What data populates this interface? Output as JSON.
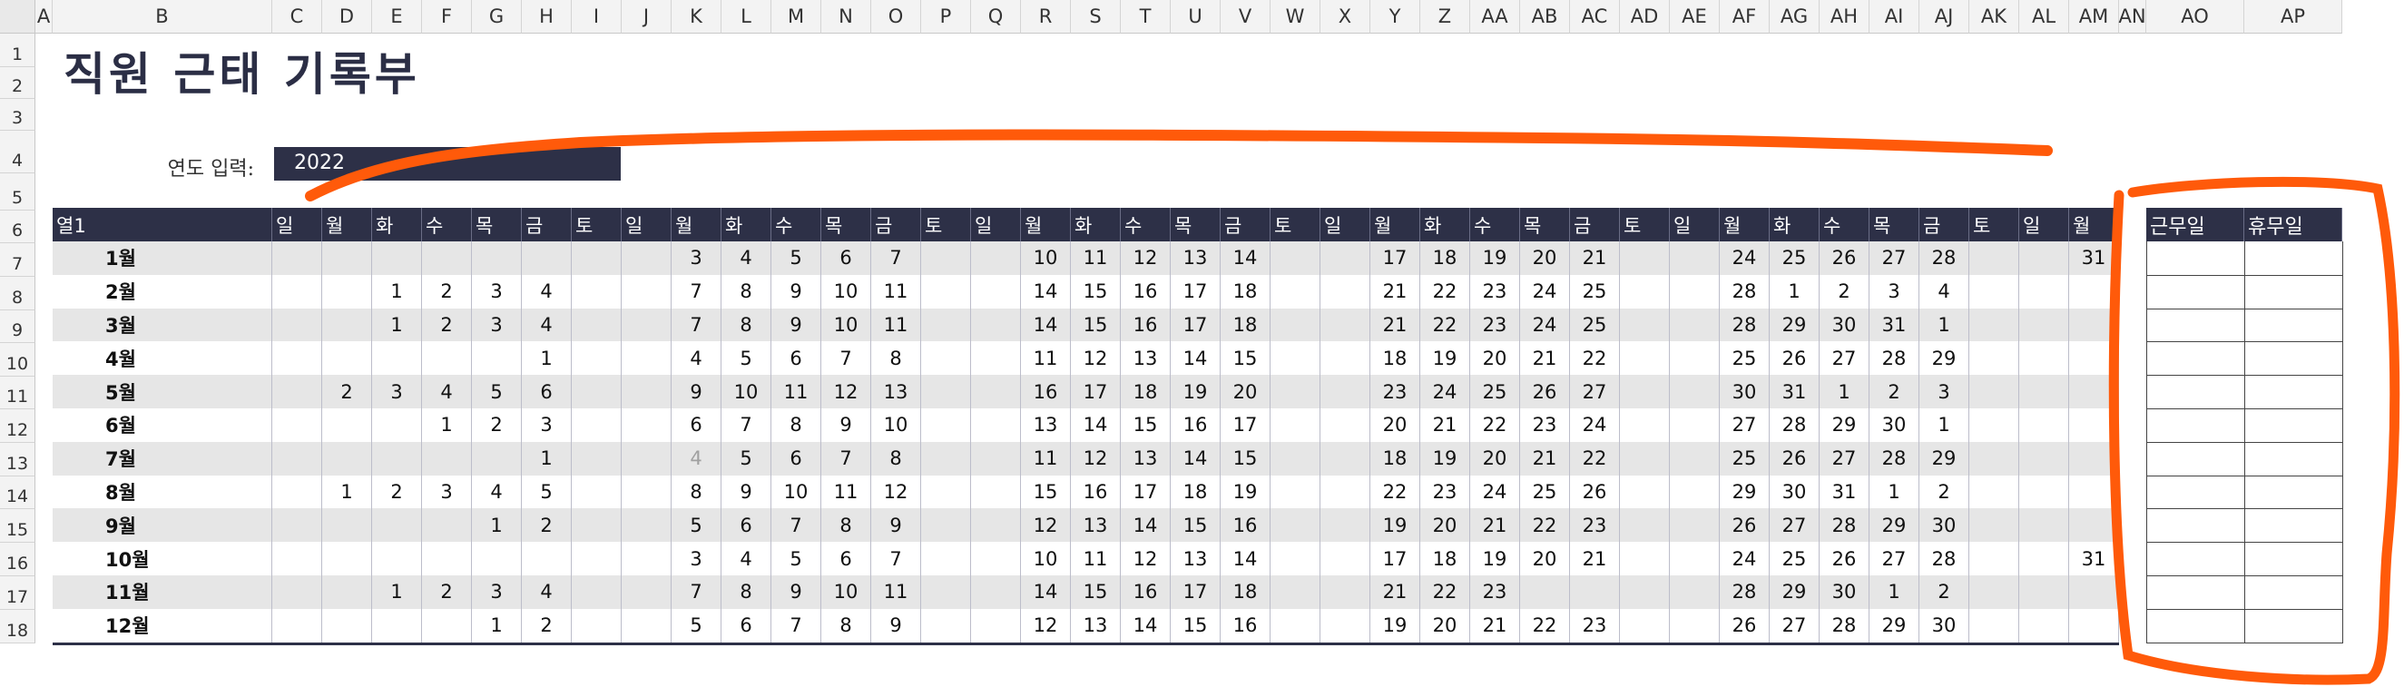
{
  "sheet": {
    "columns": [
      "A",
      "B",
      "C",
      "D",
      "E",
      "F",
      "G",
      "H",
      "I",
      "J",
      "K",
      "L",
      "M",
      "N",
      "O",
      "P",
      "Q",
      "R",
      "S",
      "T",
      "U",
      "V",
      "W",
      "X",
      "Y",
      "Z",
      "AA",
      "AB",
      "AC",
      "AD",
      "AE",
      "AF",
      "AG",
      "AH",
      "AI",
      "AJ",
      "AK",
      "AL",
      "AM",
      "AN",
      "AO",
      "AP"
    ],
    "rows": [
      "1",
      "2",
      "3",
      "4",
      "5",
      "6",
      "7",
      "8",
      "9",
      "10",
      "11",
      "12",
      "13",
      "14",
      "15",
      "16",
      "17",
      "18"
    ]
  },
  "title": "직원 근태 기록부",
  "year_label": "연도 입력:",
  "year_value": "2022",
  "table": {
    "first_header": "열1",
    "weekday_headers": [
      "일",
      "월",
      "화",
      "수",
      "목",
      "금",
      "토",
      "일",
      "월",
      "화",
      "수",
      "목",
      "금",
      "토",
      "일",
      "월",
      "화",
      "수",
      "목",
      "금",
      "토",
      "일",
      "월",
      "화",
      "수",
      "목",
      "금",
      "토",
      "일",
      "월",
      "화",
      "수",
      "목",
      "금",
      "토",
      "일",
      "월"
    ],
    "months": [
      {
        "label": "1월",
        "days": [
          "",
          "",
          "",
          "",
          "",
          "",
          "",
          "",
          "3",
          "4",
          "5",
          "6",
          "7",
          "",
          "",
          "10",
          "11",
          "12",
          "13",
          "14",
          "",
          "",
          "17",
          "18",
          "19",
          "20",
          "21",
          "",
          "",
          "24",
          "25",
          "26",
          "27",
          "28",
          "",
          "",
          "31"
        ]
      },
      {
        "label": "2월",
        "days": [
          "",
          "",
          "1",
          "2",
          "3",
          "4",
          "",
          "",
          "7",
          "8",
          "9",
          "10",
          "11",
          "",
          "",
          "14",
          "15",
          "16",
          "17",
          "18",
          "",
          "",
          "21",
          "22",
          "23",
          "24",
          "25",
          "",
          "",
          "28",
          "1",
          "2",
          "3",
          "4",
          "",
          "",
          ""
        ]
      },
      {
        "label": "3월",
        "days": [
          "",
          "",
          "1",
          "2",
          "3",
          "4",
          "",
          "",
          "7",
          "8",
          "9",
          "10",
          "11",
          "",
          "",
          "14",
          "15",
          "16",
          "17",
          "18",
          "",
          "",
          "21",
          "22",
          "23",
          "24",
          "25",
          "",
          "",
          "28",
          "29",
          "30",
          "31",
          "1",
          "",
          "",
          ""
        ]
      },
      {
        "label": "4월",
        "days": [
          "",
          "",
          "",
          "",
          "",
          "1",
          "",
          "",
          "4",
          "5",
          "6",
          "7",
          "8",
          "",
          "",
          "11",
          "12",
          "13",
          "14",
          "15",
          "",
          "",
          "18",
          "19",
          "20",
          "21",
          "22",
          "",
          "",
          "25",
          "26",
          "27",
          "28",
          "29",
          "",
          "",
          ""
        ]
      },
      {
        "label": "5월",
        "days": [
          "",
          "2",
          "3",
          "4",
          "5",
          "6",
          "",
          "",
          "9",
          "10",
          "11",
          "12",
          "13",
          "",
          "",
          "16",
          "17",
          "18",
          "19",
          "20",
          "",
          "",
          "23",
          "24",
          "25",
          "26",
          "27",
          "",
          "",
          "30",
          "31",
          "1",
          "2",
          "3",
          "",
          "",
          ""
        ]
      },
      {
        "label": "6월",
        "days": [
          "",
          "",
          "",
          "1",
          "2",
          "3",
          "",
          "",
          "6",
          "7",
          "8",
          "9",
          "10",
          "",
          "",
          "13",
          "14",
          "15",
          "16",
          "17",
          "",
          "",
          "20",
          "21",
          "22",
          "23",
          "24",
          "",
          "",
          "27",
          "28",
          "29",
          "30",
          "1",
          "",
          "",
          ""
        ]
      },
      {
        "label": "7월",
        "days": [
          "",
          "",
          "",
          "",
          "",
          "1",
          "",
          "",
          "4",
          "5",
          "6",
          "7",
          "8",
          "",
          "",
          "11",
          "12",
          "13",
          "14",
          "15",
          "",
          "",
          "18",
          "19",
          "20",
          "21",
          "22",
          "",
          "",
          "25",
          "26",
          "27",
          "28",
          "29",
          "",
          "",
          ""
        ]
      },
      {
        "label": "8월",
        "days": [
          "",
          "1",
          "2",
          "3",
          "4",
          "5",
          "",
          "",
          "8",
          "9",
          "10",
          "11",
          "12",
          "",
          "",
          "15",
          "16",
          "17",
          "18",
          "19",
          "",
          "",
          "22",
          "23",
          "24",
          "25",
          "26",
          "",
          "",
          "29",
          "30",
          "31",
          "1",
          "2",
          "",
          "",
          ""
        ]
      },
      {
        "label": "9월",
        "days": [
          "",
          "",
          "",
          "",
          "1",
          "2",
          "",
          "",
          "5",
          "6",
          "7",
          "8",
          "9",
          "",
          "",
          "12",
          "13",
          "14",
          "15",
          "16",
          "",
          "",
          "19",
          "20",
          "21",
          "22",
          "23",
          "",
          "",
          "26",
          "27",
          "28",
          "29",
          "30",
          "",
          "",
          ""
        ]
      },
      {
        "label": "10월",
        "days": [
          "",
          "",
          "",
          "",
          "",
          "",
          "",
          "",
          "3",
          "4",
          "5",
          "6",
          "7",
          "",
          "",
          "10",
          "11",
          "12",
          "13",
          "14",
          "",
          "",
          "17",
          "18",
          "19",
          "20",
          "21",
          "",
          "",
          "24",
          "25",
          "26",
          "27",
          "28",
          "",
          "",
          "31"
        ]
      },
      {
        "label": "11월",
        "days": [
          "",
          "",
          "1",
          "2",
          "3",
          "4",
          "",
          "",
          "7",
          "8",
          "9",
          "10",
          "11",
          "",
          "",
          "14",
          "15",
          "16",
          "17",
          "18",
          "",
          "",
          "21",
          "22",
          "23",
          "",
          "",
          "",
          "",
          "28",
          "29",
          "30",
          "1",
          "2",
          "",
          "",
          ""
        ]
      },
      {
        "label": "12월",
        "days": [
          "",
          "",
          "",
          "",
          "1",
          "2",
          "",
          "",
          "5",
          "6",
          "7",
          "8",
          "9",
          "",
          "",
          "12",
          "13",
          "14",
          "15",
          "16",
          "",
          "",
          "19",
          "20",
          "21",
          "22",
          "23",
          "",
          "",
          "26",
          "27",
          "28",
          "29",
          "30",
          "",
          "",
          ""
        ]
      }
    ]
  },
  "summary": {
    "headers": [
      "근무일",
      "휴무일"
    ]
  },
  "colors": {
    "header_bg": "#2d3047",
    "band_bg": "#e6e6e6",
    "annotation": "#ff5a0a"
  }
}
